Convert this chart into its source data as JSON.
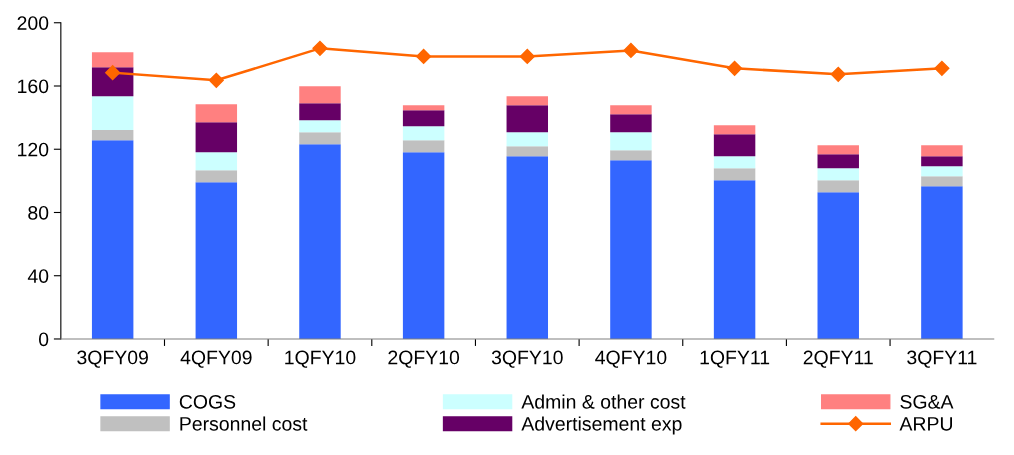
{
  "chart_data": {
    "type": "bar",
    "stacked": true,
    "categories": [
      "3QFY09",
      "4QFY09",
      "1QFY10",
      "2QFY10",
      "3QFY10",
      "4QFY10",
      "1QFY11",
      "2QFY11",
      "3QFY11"
    ],
    "series": [
      {
        "name": "COGS",
        "color": "#3366ff",
        "values": [
          125.7,
          99.2,
          123.2,
          118.1,
          115.6,
          113.1,
          100.4,
          92.8,
          96.6
        ]
      },
      {
        "name": "Personnel cost",
        "color": "#c0c0c0",
        "values": [
          6.5,
          7.5,
          7.5,
          7.6,
          6.3,
          6.3,
          7.6,
          7.6,
          6.3
        ]
      },
      {
        "name": "Admin & other cost",
        "color": "#ccffff",
        "values": [
          21.3,
          11.4,
          7.6,
          8.8,
          8.8,
          11.3,
          7.6,
          7.6,
          6.4
        ]
      },
      {
        "name": "Advertisement exp",
        "color": "#660066",
        "values": [
          18.3,
          19,
          10.8,
          10.1,
          17.1,
          11.4,
          13.9,
          8.8,
          6.3
        ]
      },
      {
        "name": "SG&A",
        "color": "#ff8080",
        "values": [
          9.5,
          11.3,
          10.7,
          3.2,
          5.7,
          5.7,
          5.7,
          5.7,
          6.9
        ]
      },
      {
        "name": "ARPU",
        "type": "line",
        "color": "#ff6600",
        "marker": "diamond",
        "values": [
          168.4,
          163.6,
          183.8,
          178.7,
          178.7,
          182.5,
          171.2,
          167.4,
          171.2
        ]
      }
    ],
    "ylim": [
      0,
      200
    ],
    "yticks": [
      0,
      40,
      80,
      120,
      160,
      200
    ],
    "grid": false,
    "legend": "bottom"
  }
}
